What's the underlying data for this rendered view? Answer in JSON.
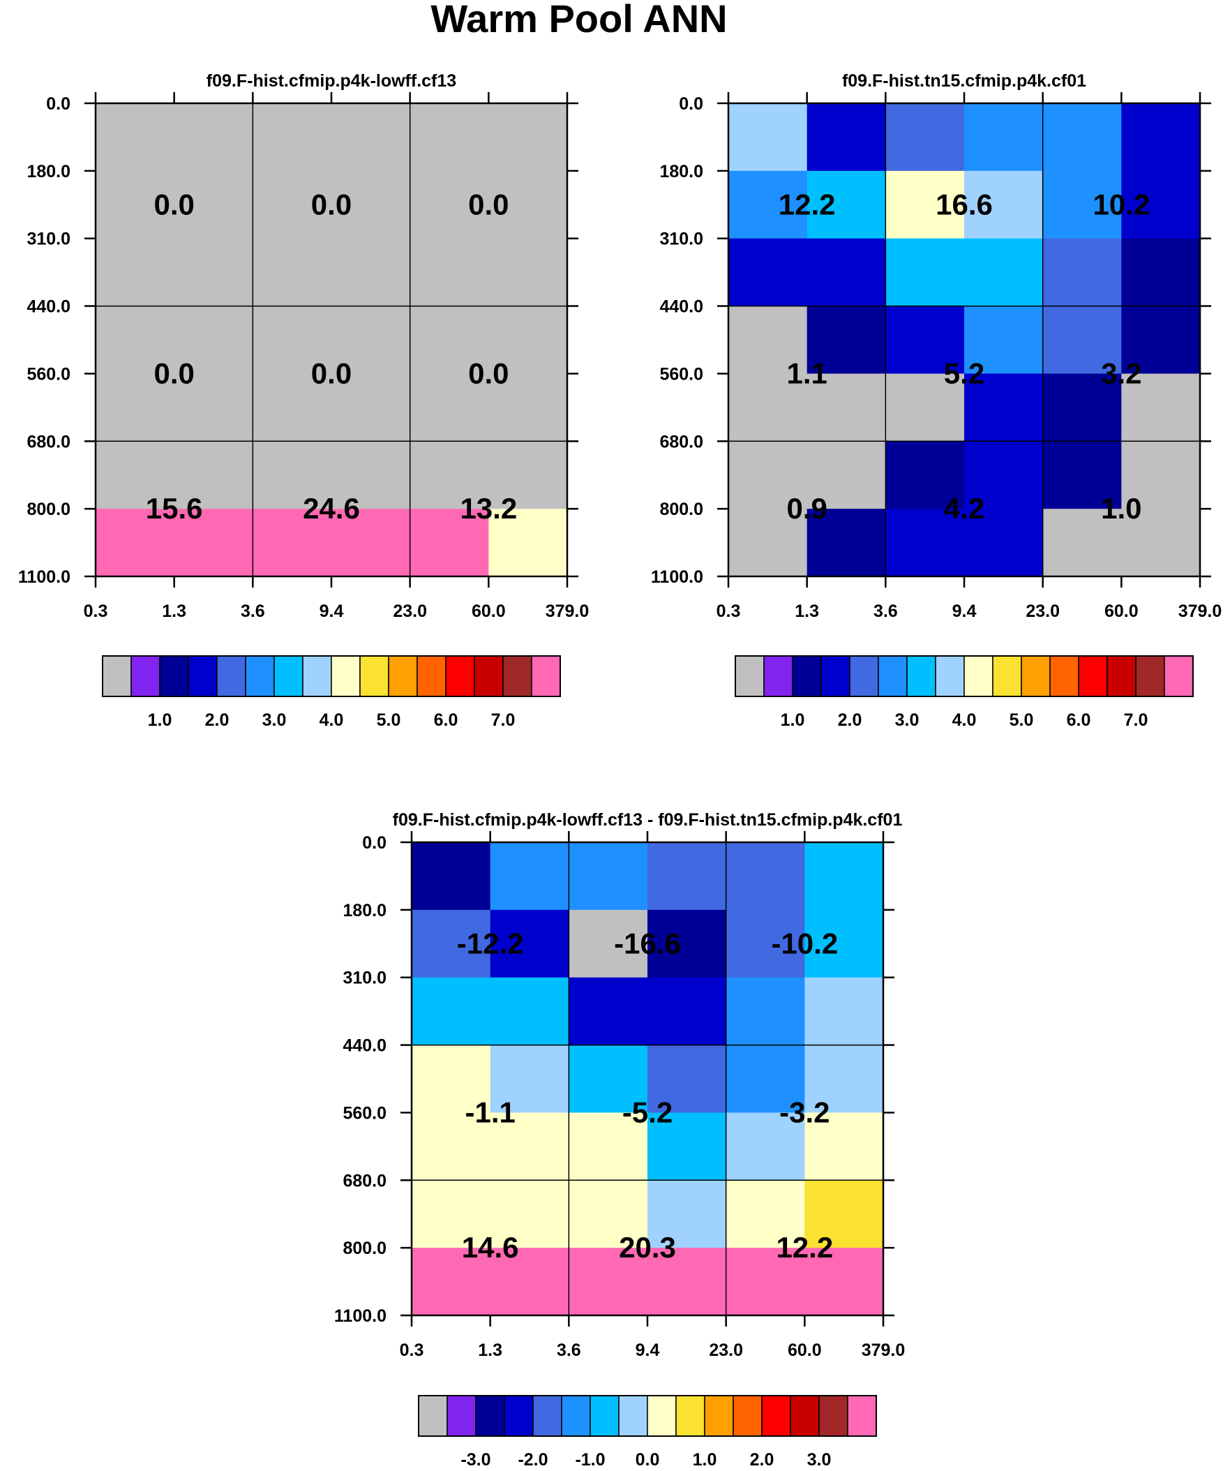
{
  "title": "Warm Pool ANN",
  "chart_data": [
    {
      "type": "heatmap",
      "id": "left",
      "title": "f09.F-hist.cfmip.p4k-lowff.cf13",
      "x_ticks": [
        "0.3",
        "1.3",
        "3.6",
        "9.4",
        "23.0",
        "60.0",
        "379.0"
      ],
      "y_ticks": [
        "0.0",
        "180.0",
        "310.0",
        "440.0",
        "560.0",
        "680.0",
        "800.0",
        "1100.0"
      ],
      "cells": [
        [
          0,
          0,
          0,
          0,
          0,
          0
        ],
        [
          0,
          0,
          0,
          0,
          0,
          0
        ],
        [
          0,
          0,
          0,
          0,
          0,
          0
        ],
        [
          0,
          0,
          0,
          0,
          0,
          0
        ],
        [
          0,
          0,
          0,
          0,
          0,
          0
        ],
        [
          0,
          0,
          0,
          0,
          0,
          0
        ],
        [
          15,
          15,
          15,
          15,
          15,
          8
        ]
      ],
      "box_labels": [
        [
          "0.0",
          "0.0",
          "0.0"
        ],
        [
          "0.0",
          "0.0",
          "0.0"
        ],
        [
          "15.6",
          "24.6",
          "13.2"
        ]
      ],
      "colorbar": {
        "labels": [
          "1.0",
          "2.0",
          "3.0",
          "4.0",
          "5.0",
          "6.0",
          "7.0"
        ]
      }
    },
    {
      "type": "heatmap",
      "id": "right",
      "title": "f09.F-hist.tn15.cfmip.p4k.cf01",
      "x_ticks": [
        "0.3",
        "1.3",
        "3.6",
        "9.4",
        "23.0",
        "60.0",
        "379.0"
      ],
      "y_ticks": [
        "0.0",
        "180.0",
        "310.0",
        "440.0",
        "560.0",
        "680.0",
        "800.0",
        "1100.0"
      ],
      "cells": [
        [
          7,
          3,
          4,
          5,
          5,
          3
        ],
        [
          5,
          6,
          8,
          7,
          5,
          3
        ],
        [
          3,
          3,
          6,
          6,
          4,
          2
        ],
        [
          0,
          2,
          3,
          5,
          4,
          2
        ],
        [
          0,
          0,
          0,
          3,
          2,
          0
        ],
        [
          0,
          0,
          2,
          3,
          2,
          0
        ],
        [
          0,
          2,
          3,
          3,
          0,
          0
        ]
      ],
      "box_labels": [
        [
          "12.2",
          "16.6",
          "10.2"
        ],
        [
          "1.1",
          "5.2",
          "3.2"
        ],
        [
          "0.9",
          "4.2",
          "1.0"
        ]
      ],
      "colorbar": {
        "labels": [
          "1.0",
          "2.0",
          "3.0",
          "4.0",
          "5.0",
          "6.0",
          "7.0"
        ]
      }
    },
    {
      "type": "heatmap",
      "id": "diff",
      "title": "f09.F-hist.cfmip.p4k-lowff.cf13 - f09.F-hist.tn15.cfmip.p4k.cf01",
      "x_ticks": [
        "0.3",
        "1.3",
        "3.6",
        "9.4",
        "23.0",
        "60.0",
        "379.0"
      ],
      "y_ticks": [
        "0.0",
        "180.0",
        "310.0",
        "440.0",
        "560.0",
        "680.0",
        "800.0",
        "1100.0"
      ],
      "cells": [
        [
          2,
          5,
          5,
          4,
          4,
          6
        ],
        [
          4,
          3,
          0,
          2,
          4,
          6
        ],
        [
          6,
          6,
          3,
          3,
          5,
          7
        ],
        [
          8,
          7,
          6,
          4,
          5,
          7
        ],
        [
          8,
          8,
          8,
          6,
          7,
          8
        ],
        [
          8,
          8,
          8,
          7,
          8,
          9
        ],
        [
          15,
          15,
          15,
          15,
          15,
          15
        ]
      ],
      "box_labels": [
        [
          "-12.2",
          "-16.6",
          "-10.2"
        ],
        [
          "-1.1",
          "-5.2",
          "-3.2"
        ],
        [
          "14.6",
          "20.3",
          "12.2"
        ]
      ],
      "colorbar": {
        "labels": [
          "-3.0",
          "-2.0",
          "-1.0",
          "0.0",
          "1.0",
          "2.0",
          "3.0"
        ]
      }
    }
  ],
  "colors": {
    "palette": [
      "#c0c0c0",
      "#8224f0",
      "#000096",
      "#0000cd",
      "#4169e1",
      "#1e90ff",
      "#00bfff",
      "#a0d2ff",
      "#ffffc8",
      "#fae132",
      "#ffa000",
      "#ff6400",
      "#ff0000",
      "#c80000",
      "#a02828",
      "#ff69b4"
    ]
  }
}
